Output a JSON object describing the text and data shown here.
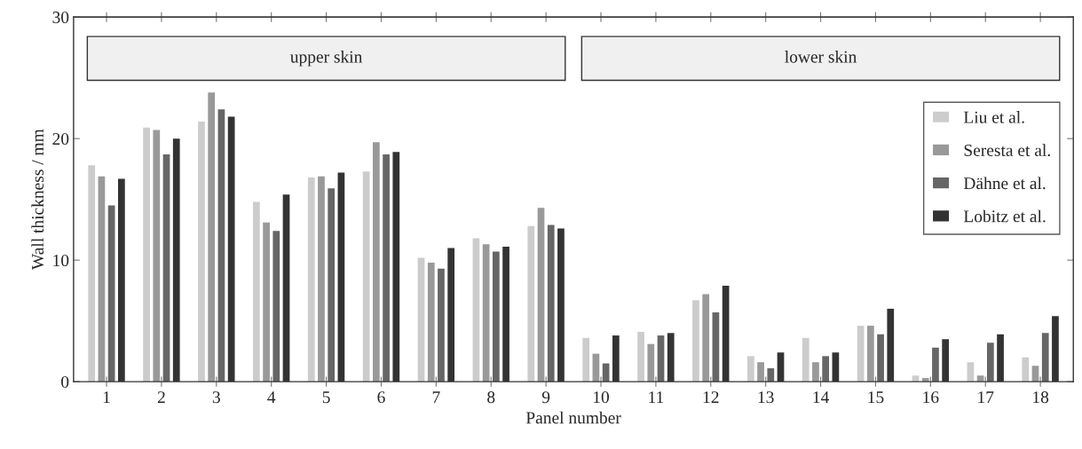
{
  "chart_data": {
    "type": "bar",
    "xlabel": "Panel number",
    "ylabel": "Wall thickness / mm",
    "categories": [
      "1",
      "2",
      "3",
      "4",
      "5",
      "6",
      "7",
      "8",
      "9",
      "10",
      "11",
      "12",
      "13",
      "14",
      "15",
      "16",
      "17",
      "18"
    ],
    "series": [
      {
        "name": "Liu et al.",
        "color": "#cccccc",
        "values": [
          17.8,
          20.9,
          21.4,
          14.8,
          16.8,
          17.3,
          10.2,
          11.8,
          12.8,
          3.6,
          4.1,
          6.7,
          2.1,
          3.6,
          4.6,
          0.5,
          1.6,
          2.0
        ]
      },
      {
        "name": "Seresta et al.",
        "color": "#999999",
        "values": [
          16.9,
          20.7,
          23.8,
          13.1,
          16.9,
          19.7,
          9.8,
          11.3,
          14.3,
          2.3,
          3.1,
          7.2,
          1.6,
          1.6,
          4.6,
          0.3,
          0.5,
          1.3
        ]
      },
      {
        "name": "Dähne et al.",
        "color": "#666666",
        "values": [
          14.5,
          18.7,
          22.4,
          12.4,
          15.9,
          18.7,
          9.3,
          10.7,
          12.9,
          1.5,
          3.8,
          5.7,
          1.1,
          2.1,
          3.9,
          2.8,
          3.2,
          4.0
        ]
      },
      {
        "name": "Lobitz et al.",
        "color": "#333333",
        "values": [
          16.7,
          20.0,
          21.8,
          15.4,
          17.2,
          18.9,
          11.0,
          11.1,
          12.6,
          3.8,
          4.0,
          7.9,
          2.4,
          2.4,
          6.0,
          3.5,
          3.9,
          5.4
        ]
      }
    ],
    "annotations": [
      "upper skin",
      "lower skin"
    ],
    "ylim": [
      0,
      30
    ],
    "yticks": [
      0,
      10,
      20,
      30
    ],
    "grid": false,
    "legend": "top right"
  }
}
